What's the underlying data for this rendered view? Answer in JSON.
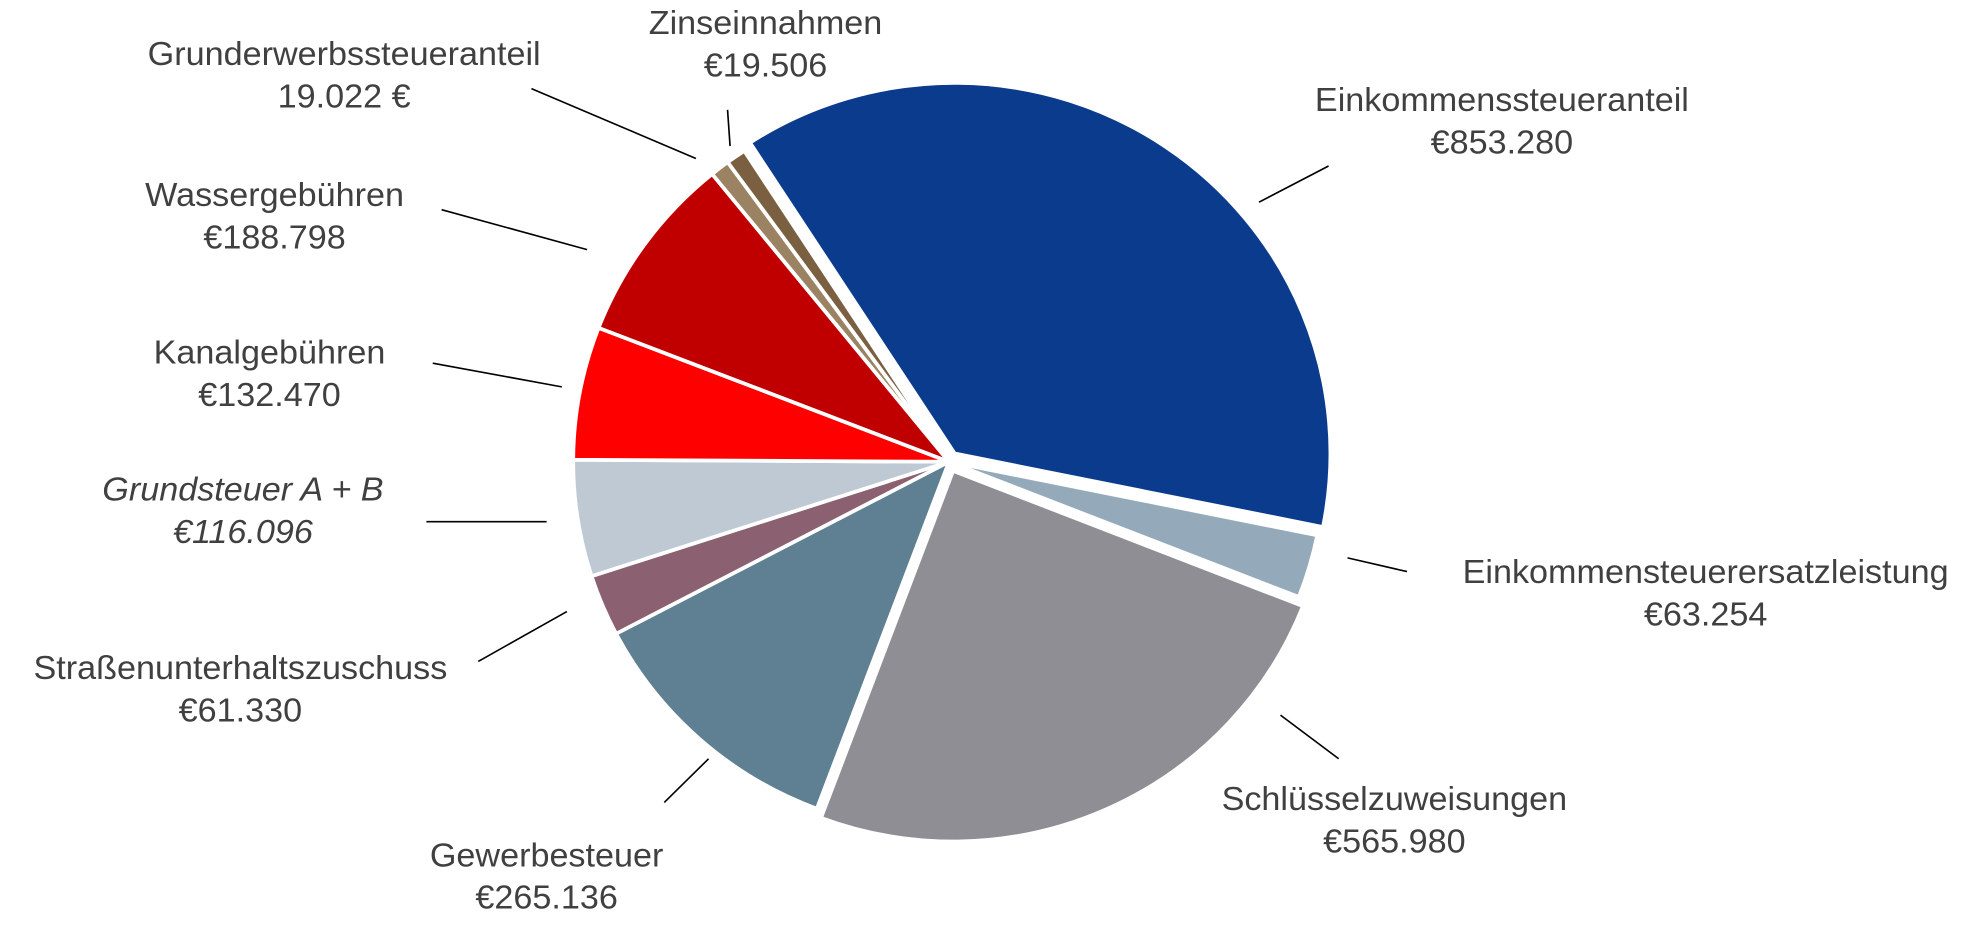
{
  "chart_data": {
    "type": "pie",
    "categories": [
      "Einkommenssteueranteil",
      "Einkommensteuerersatzleistung",
      "Schlüsselzuweisungen",
      "Gewerbesteuer",
      "Straßenunterhaltszuschuss",
      "Grundsteuer A + B",
      "Kanalgebühren",
      "Wassergebühren",
      "Grunderwerbssteueranteil",
      "Zinseinnahmen"
    ],
    "values": [
      853280,
      63254,
      565980,
      265136,
      61330,
      116096,
      132470,
      188798,
      19022,
      19506
    ],
    "value_labels": [
      "€853.280",
      "€63.254",
      "€565.980",
      "€265.136",
      "€61.330",
      "€116.096",
      "€132.470",
      "€188.798",
      "19.022 €",
      "€19.506"
    ],
    "colors": [
      "#0b3b8c",
      "#94aaba",
      "#8f8e94",
      "#5f8093",
      "#8b6070",
      "#bec9d3",
      "#ff0000",
      "#c00000",
      "#9b8262",
      "#7a6040"
    ]
  }
}
